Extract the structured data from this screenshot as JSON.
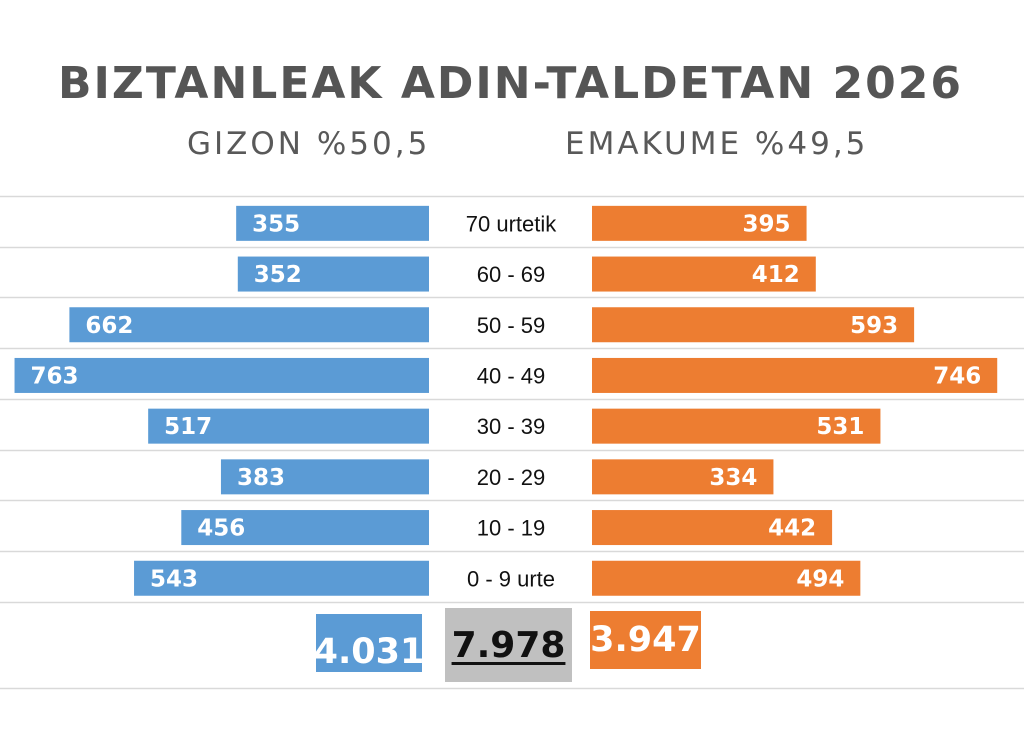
{
  "title": "BIZTANLEAK ADIN-TALDETAN 2026",
  "men_header": "GIZON %50,5",
  "women_header": "EMAKUME %49,5",
  "totals": {
    "men": "4.031",
    "all": "7.978",
    "women": "3.947"
  },
  "colors": {
    "men": "#5b9bd5",
    "women": "#ed7d31",
    "grid": "#d9d9d9",
    "total_all_bg": "#c0c0c0"
  },
  "chart_data": {
    "type": "bar",
    "orientation": "horizontal",
    "categories": [
      "70 urtetik",
      "60 - 69",
      "50 - 59",
      "40 - 49",
      "30 - 39",
      "20 - 29",
      "10 - 19",
      "0 - 9 urte"
    ],
    "series": [
      {
        "name": "GIZON",
        "values": [
          355,
          352,
          662,
          763,
          517,
          383,
          456,
          543
        ]
      },
      {
        "name": "EMAKUME",
        "values": [
          395,
          412,
          593,
          746,
          531,
          334,
          442,
          494
        ]
      }
    ],
    "title": "BIZTANLEAK ADIN-TALDETAN 2026",
    "grid": true
  }
}
